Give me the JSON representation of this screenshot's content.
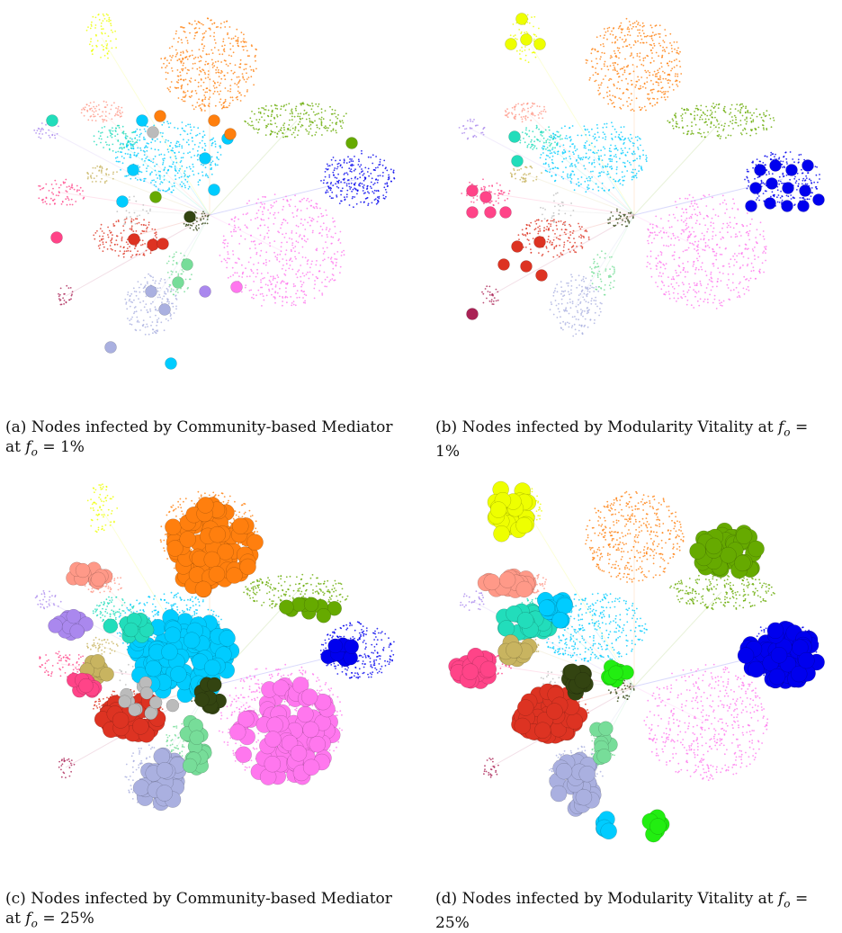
{
  "figure": {
    "panels": [
      {
        "id": "a",
        "caption_label": "(a)",
        "caption_text": "Nodes infected by Community-based Mediator at",
        "caption_formula": "= 1%",
        "symbol_f": "f",
        "symbol_sub": "o"
      },
      {
        "id": "b",
        "caption_label": "(b)",
        "caption_text": "Nodes infected by Modularity Vitality at",
        "caption_formula": "= 1%",
        "symbol_f": "f",
        "symbol_sub": "o"
      },
      {
        "id": "c",
        "caption_label": "(c)",
        "caption_text": "Nodes infected by Community-based Mediator at",
        "caption_formula": "= 25%",
        "symbol_f": "f",
        "symbol_sub": "o"
      },
      {
        "id": "d",
        "caption_label": "(d)",
        "caption_text": "Nodes infected by Modularity Vitality at",
        "caption_formula": "= 25%",
        "symbol_f": "f",
        "symbol_sub": "o"
      }
    ],
    "communities": [
      {
        "name": "orange",
        "color": "#ff7f0e"
      },
      {
        "name": "green",
        "color": "#66aa00"
      },
      {
        "name": "blue",
        "color": "#0000ee"
      },
      {
        "name": "pink",
        "color": "#ff77ee"
      },
      {
        "name": "cyan",
        "color": "#00ccff"
      },
      {
        "name": "yellow",
        "color": "#eeff00"
      },
      {
        "name": "red",
        "color": "#dd3322"
      },
      {
        "name": "lavender",
        "color": "#aab0e0"
      },
      {
        "name": "teal",
        "color": "#22ddbb"
      },
      {
        "name": "salmon",
        "color": "#ff9988"
      },
      {
        "name": "khaki",
        "color": "#c8b460"
      },
      {
        "name": "rose",
        "color": "#ff4488"
      },
      {
        "name": "mint",
        "color": "#77dd99"
      },
      {
        "name": "darkolive",
        "color": "#334411"
      },
      {
        "name": "lime",
        "color": "#22ee11"
      },
      {
        "name": "maroon",
        "color": "#aa2255"
      },
      {
        "name": "violet",
        "color": "#aa88ee"
      },
      {
        "name": "gray",
        "color": "#bbbbbb"
      }
    ]
  }
}
